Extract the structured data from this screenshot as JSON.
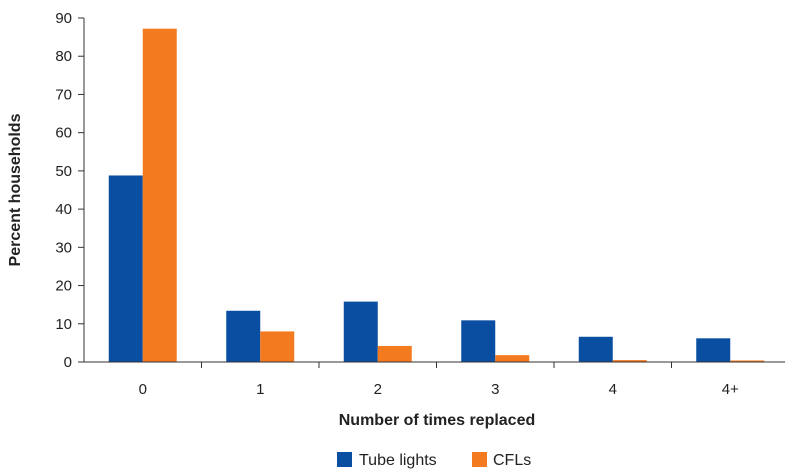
{
  "chart_data": {
    "type": "bar",
    "title": "",
    "xlabel": "Number of times replaced",
    "ylabel": "Percent households",
    "categories": [
      "0",
      "1",
      "2",
      "3",
      "4",
      "4+"
    ],
    "series": [
      {
        "name": "Tube lights",
        "color": "#0A4EA2",
        "values": [
          48.8,
          13.4,
          15.8,
          10.9,
          6.6,
          6.2
        ]
      },
      {
        "name": "CFLs",
        "color": "#F47A20",
        "values": [
          87.2,
          8.0,
          4.2,
          1.8,
          0.5,
          0.4
        ]
      }
    ],
    "ylim": [
      0,
      90
    ],
    "yticks": [
      0,
      10,
      20,
      30,
      40,
      50,
      60,
      70,
      80,
      90
    ],
    "grid": false,
    "legend_position": "bottom-center"
  }
}
